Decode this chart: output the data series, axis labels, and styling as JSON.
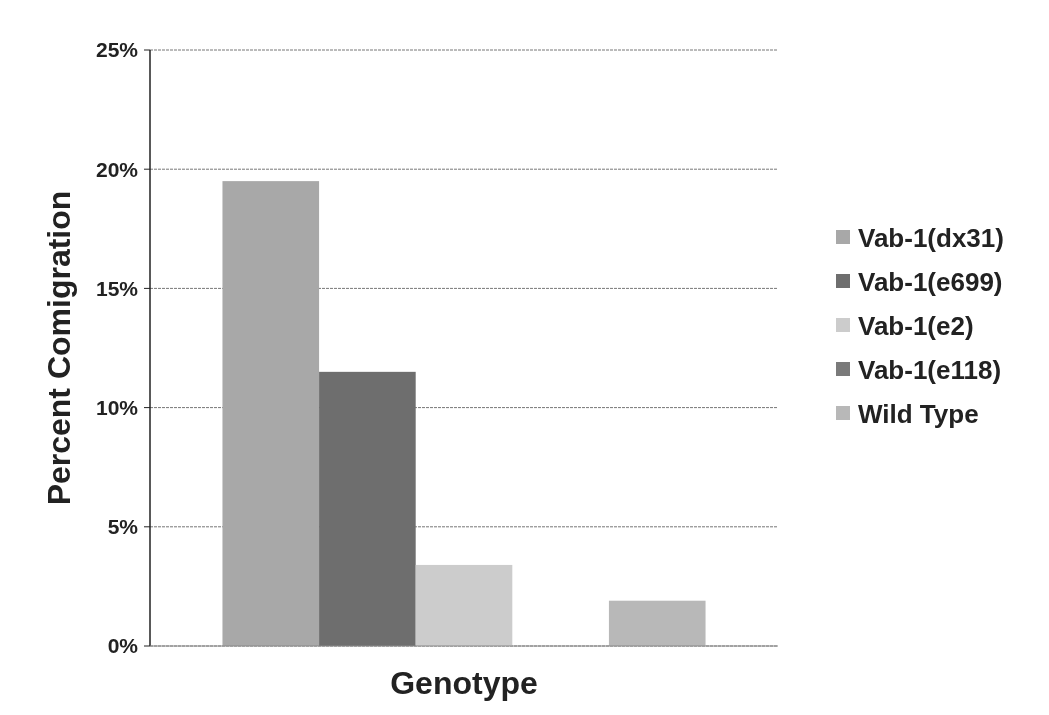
{
  "chart_data": {
    "type": "bar",
    "xlabel": "Genotype",
    "ylabel": "Percent Comigration",
    "categories": [
      null
    ],
    "series": [
      {
        "name": "Vab-1(dx31)",
        "color": "#a8a8a8",
        "values": [
          19.5
        ]
      },
      {
        "name": "Vab-1(e699)",
        "color": "#6e6e6e",
        "values": [
          11.5
        ]
      },
      {
        "name": "Vab-1(e2)",
        "color": "#cccccc",
        "values": [
          3.4
        ]
      },
      {
        "name": "Vab-1(e118)",
        "color": "#7a7a7a",
        "values": [
          0
        ]
      },
      {
        "name": "Wild Type",
        "color": "#b8b8b8",
        "values": [
          1.9
        ]
      }
    ],
    "ylim": [
      0,
      25
    ],
    "yticks": [
      {
        "value": 0,
        "label": "0%"
      },
      {
        "value": 5,
        "label": "5%"
      },
      {
        "value": 10,
        "label": "10%"
      },
      {
        "value": 15,
        "label": "15%"
      },
      {
        "value": 20,
        "label": "20%"
      },
      {
        "value": 25,
        "label": "25%"
      }
    ],
    "grid": "y",
    "legend": "right"
  }
}
